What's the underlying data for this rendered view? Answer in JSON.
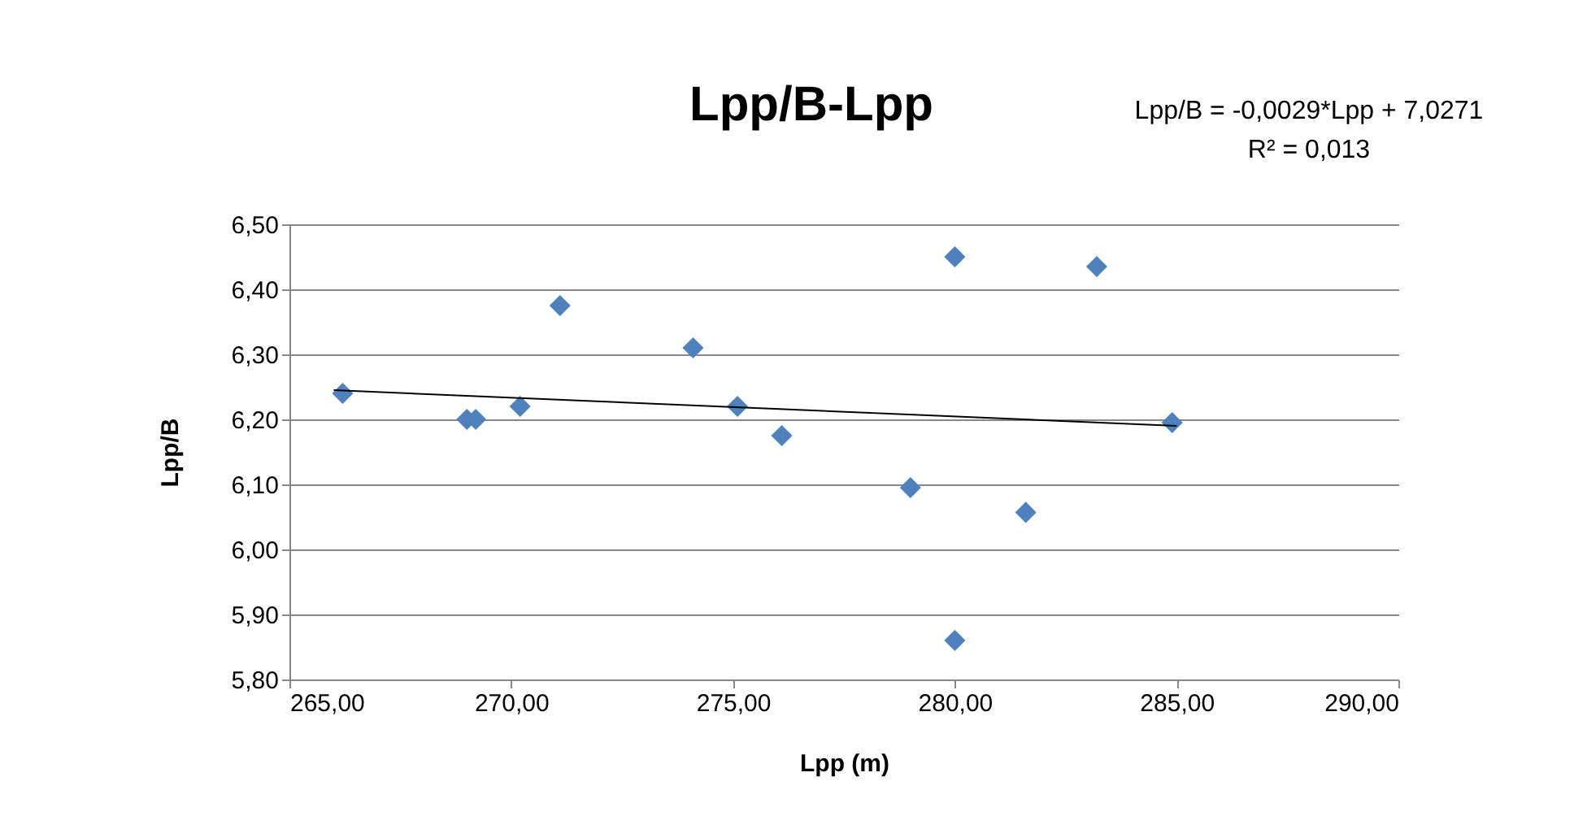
{
  "chart_data": {
    "type": "scatter",
    "title": "Lpp/B-Lpp",
    "xlabel": "Lpp (m)",
    "ylabel": "Lpp/B",
    "annotations": [
      "Lpp/B = -0,0029*Lpp + 7,0271",
      "R² = 0,013"
    ],
    "grid": "y",
    "xlim": [
      265,
      290
    ],
    "ylim": [
      5.8,
      6.5
    ],
    "xticks": [
      {
        "value": 265,
        "label": "265,00"
      },
      {
        "value": 270,
        "label": "270,00"
      },
      {
        "value": 275,
        "label": "275,00"
      },
      {
        "value": 280,
        "label": "280,00"
      },
      {
        "value": 285,
        "label": "285,00"
      },
      {
        "value": 290,
        "label": "290,00"
      }
    ],
    "yticks": [
      {
        "value": 5.8,
        "label": "5,80"
      },
      {
        "value": 5.9,
        "label": "5,90"
      },
      {
        "value": 6.0,
        "label": "6,00"
      },
      {
        "value": 6.1,
        "label": "6,10"
      },
      {
        "value": 6.2,
        "label": "6,20"
      },
      {
        "value": 6.3,
        "label": "6,30"
      },
      {
        "value": 6.4,
        "label": "6,40"
      },
      {
        "value": 6.5,
        "label": "6,50"
      }
    ],
    "series": [
      {
        "type": "scatter",
        "marker": "diamond",
        "color": "#4f81bd",
        "x": [
          266.2,
          269.0,
          269.2,
          270.2,
          271.1,
          274.1,
          275.1,
          276.1,
          279.0,
          280.0,
          280.0,
          281.6,
          283.2,
          284.9
        ],
        "values": [
          6.24,
          6.2,
          6.2,
          6.22,
          6.375,
          6.31,
          6.22,
          6.175,
          6.095,
          5.86,
          6.45,
          6.057,
          6.435,
          6.195
        ]
      },
      {
        "type": "line",
        "marker": "none",
        "color": "#000000",
        "line_style": "solid",
        "x": [
          266.0,
          285.0
        ],
        "values": [
          6.245,
          6.19
        ]
      }
    ]
  }
}
